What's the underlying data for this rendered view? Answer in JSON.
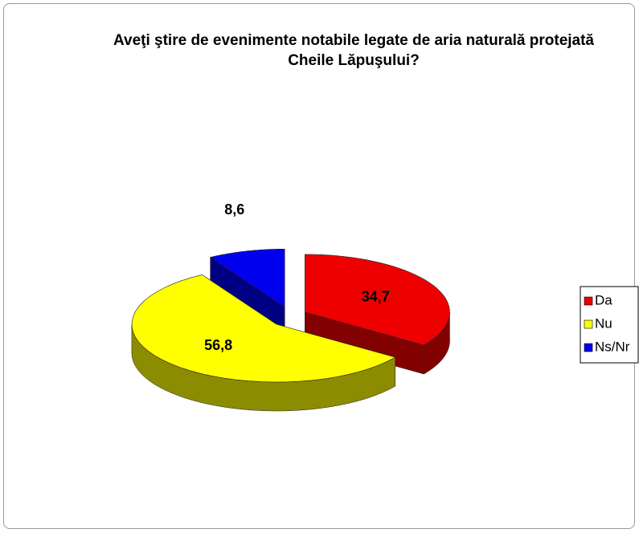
{
  "chart_data": {
    "type": "pie",
    "title": "Aveţi ştire de evenimente notabile legate de aria naturală protejată Cheile Lăpuşului?",
    "categories": [
      "Da",
      "Nu",
      "Ns/Nr"
    ],
    "values": [
      34.7,
      56.8,
      8.6
    ],
    "value_labels": [
      "34,7",
      "56,8",
      "8,6"
    ],
    "colors": [
      "#ee0000",
      "#ffff00",
      "#0000ee"
    ],
    "legend": "right"
  }
}
